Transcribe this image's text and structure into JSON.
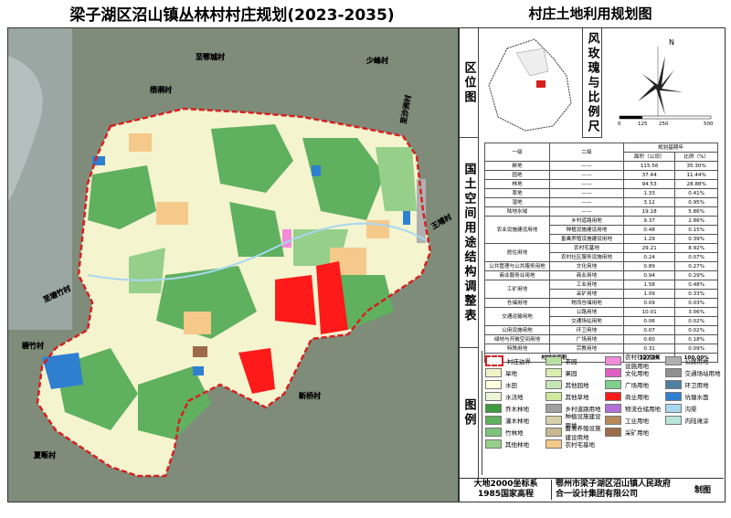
{
  "header": {
    "title": "梁子湖区沼山镇丛林村村庄规划(2023-2035)",
    "subtitle": "村庄土地利用规划图"
  },
  "map": {
    "labels": [
      "至鄂城村",
      "少峰村",
      "梧桐村",
      "至沙洲村",
      "王埔村",
      "至塘竹村",
      "碧竹村",
      "新桥村",
      "夏畈村"
    ]
  },
  "location": {
    "title": "区位图",
    "rose_title": "风玫瑰与比例尺",
    "north": "N",
    "scale_ticks": [
      "0",
      "125",
      "250",
      "500"
    ]
  },
  "table": {
    "title": "国土空间用途结构调整表",
    "headers": {
      "first": "一级",
      "second": "二级",
      "period": "规划基期年",
      "area": "面积（公顷）",
      "ratio": "比例（%）"
    },
    "groups": [
      {
        "name": "耕地",
        "items": [
          {
            "name": "——",
            "area": "115.56",
            "ratio": "35.30%"
          }
        ]
      },
      {
        "name": "园地",
        "items": [
          {
            "name": "——",
            "area": "37.44",
            "ratio": "11.44%"
          }
        ]
      },
      {
        "name": "林地",
        "items": [
          {
            "name": "——",
            "area": "94.53",
            "ratio": "28.88%"
          }
        ]
      },
      {
        "name": "草地",
        "items": [
          {
            "name": "——",
            "area": "1.33",
            "ratio": "0.41%"
          }
        ]
      },
      {
        "name": "湿地",
        "items": [
          {
            "name": "——",
            "area": "3.12",
            "ratio": "0.95%"
          }
        ]
      },
      {
        "name": "陆地水域",
        "items": [
          {
            "name": "——",
            "area": "19.18",
            "ratio": "5.86%"
          }
        ]
      },
      {
        "name": "农业设施建设用地",
        "items": [
          {
            "name": "乡村道路用地",
            "area": "9.37",
            "ratio": "2.86%"
          },
          {
            "name": "种植设施建设用地",
            "area": "0.48",
            "ratio": "0.15%"
          },
          {
            "name": "畜禽养殖设施建设用地",
            "area": "1.29",
            "ratio": "0.39%"
          }
        ]
      },
      {
        "name": "居住用地",
        "items": [
          {
            "name": "农村宅基地",
            "area": "29.21",
            "ratio": "8.92%"
          },
          {
            "name": "农村社区服务设施用地",
            "area": "0.24",
            "ratio": "0.07%"
          }
        ]
      },
      {
        "name": "公共管理与公共服务用地",
        "items": [
          {
            "name": "文化用地",
            "area": "0.89",
            "ratio": "0.27%"
          }
        ]
      },
      {
        "name": "商业服务业用地",
        "items": [
          {
            "name": "商业用地",
            "area": "0.94",
            "ratio": "0.29%"
          }
        ]
      },
      {
        "name": "工矿用地",
        "items": [
          {
            "name": "工业用地",
            "area": "1.58",
            "ratio": "0.48%"
          },
          {
            "name": "采矿用地",
            "area": "1.09",
            "ratio": "0.33%"
          }
        ]
      },
      {
        "name": "仓储用地",
        "items": [
          {
            "name": "物流仓储用地",
            "area": "0.09",
            "ratio": "0.03%"
          }
        ]
      },
      {
        "name": "交通运输用地",
        "items": [
          {
            "name": "公路用地",
            "area": "10.01",
            "ratio": "3.06%"
          },
          {
            "name": "交通场站用地",
            "area": "0.06",
            "ratio": "0.02%"
          }
        ]
      },
      {
        "name": "公用设施用地",
        "items": [
          {
            "name": "环卫用地",
            "area": "0.07",
            "ratio": "0.02%"
          }
        ]
      },
      {
        "name": "绿地与开敞空间用地",
        "items": [
          {
            "name": "广场用地",
            "area": "0.60",
            "ratio": "0.18%"
          }
        ]
      },
      {
        "name": "特殊用地",
        "items": [
          {
            "name": "宗教用地",
            "area": "0.31",
            "ratio": "0.09%"
          }
        ]
      }
    ],
    "total": {
      "name": "村域总面积",
      "area": "327.36",
      "ratio": "100.00%"
    }
  },
  "legend": {
    "title": "图例",
    "columns": [
      [
        {
          "name": "村庄边界",
          "color": "#d62020"
        },
        {
          "name": "旱地",
          "color": "#f2f2c8"
        },
        {
          "name": "水田",
          "color": "#ffffe0"
        },
        {
          "name": "水浇地",
          "color": "#eef5d6"
        },
        {
          "name": "乔木林地",
          "color": "#3e9a3e"
        },
        {
          "name": "灌木林地",
          "color": "#5fb05f"
        },
        {
          "name": "竹林地",
          "color": "#7cc47c"
        },
        {
          "name": "其他林地",
          "color": "#95cf8a"
        }
      ],
      [
        {
          "name": "茶园",
          "color": "#b8e0a0"
        },
        {
          "name": "果园",
          "color": "#d9edb0"
        },
        {
          "name": "其他园地",
          "color": "#c4e6b4"
        },
        {
          "name": "其他草地",
          "color": "#cfe8a0"
        },
        {
          "name": "乡村道路用地",
          "color": "#a0a0a0"
        },
        {
          "name": "种植设施建设用地",
          "color": "#d6cfa8"
        },
        {
          "name": "畜禽养殖设施建设用地",
          "color": "#c8b890"
        },
        {
          "name": "农村宅基地",
          "color": "#f5c98a"
        }
      ],
      [
        {
          "name": "农村社区服务设施用地",
          "color": "#f08cd8"
        },
        {
          "name": "文化用地",
          "color": "#e060c0"
        },
        {
          "name": "广场用地",
          "color": "#7fd08a"
        },
        {
          "name": "商业用地",
          "color": "#ff1a1a"
        },
        {
          "name": "物流仓储用地",
          "color": "#b070d8"
        },
        {
          "name": "工业用地",
          "color": "#b88a5a"
        },
        {
          "name": "采矿用地",
          "color": "#9c6b4a"
        }
      ],
      [
        {
          "name": "公路用地",
          "color": "#b0b0b0"
        },
        {
          "name": "交通场站用地",
          "color": "#909090"
        },
        {
          "name": "环卫用地",
          "color": "#5080a0"
        },
        {
          "name": "坑塘水面",
          "color": "#2f7fd0"
        },
        {
          "name": "沟渠",
          "color": "#a8d8f0"
        },
        {
          "name": "内陆滩涂",
          "color": "#b9e6d8"
        }
      ]
    ]
  },
  "footer": {
    "coords": "大地2000坐标系",
    "height": "1985国家高程",
    "org": "鄂州市梁子湖区沼山镇人民政府",
    "designer": "合一设计集团有限公司",
    "made": "制图"
  }
}
